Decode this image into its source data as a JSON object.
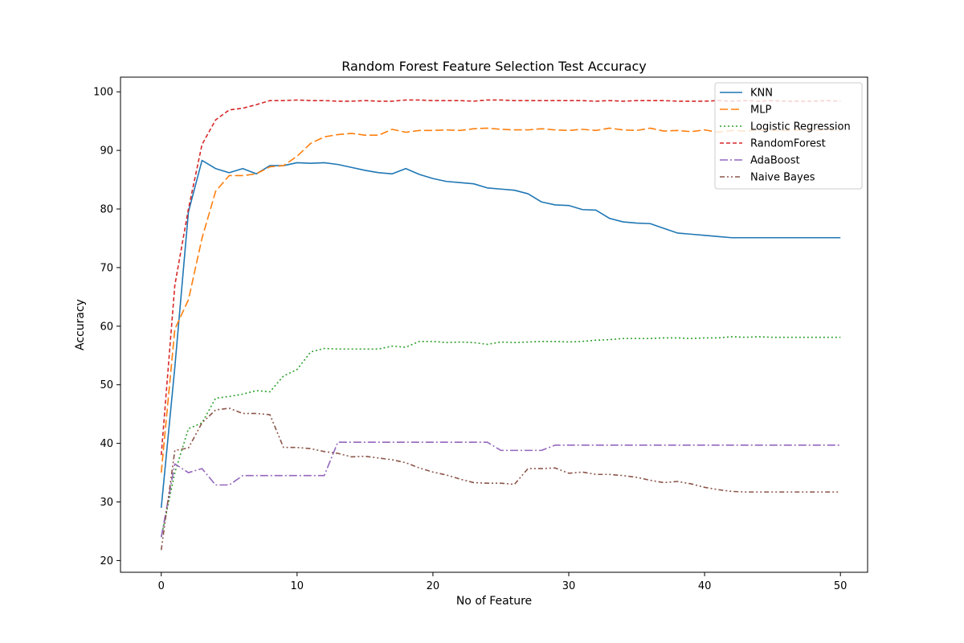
{
  "chart_data": {
    "type": "line",
    "title": "Random Forest Feature Selection Test Accuracy",
    "xlabel": "No of Feature",
    "ylabel": "Accuracy",
    "xlim": [
      -3,
      52
    ],
    "ylim": [
      18,
      102.5
    ],
    "x_ticks": [
      0,
      10,
      20,
      30,
      40,
      50
    ],
    "y_ticks": [
      20,
      30,
      40,
      50,
      60,
      70,
      80,
      90,
      100
    ],
    "grid": false,
    "legend_position": "top-right",
    "x": [
      0,
      1,
      2,
      3,
      4,
      5,
      6,
      7,
      8,
      9,
      10,
      11,
      12,
      13,
      14,
      15,
      16,
      17,
      18,
      19,
      20,
      21,
      22,
      23,
      24,
      25,
      26,
      27,
      28,
      29,
      30,
      31,
      32,
      33,
      34,
      35,
      36,
      37,
      38,
      39,
      40,
      41,
      42,
      43,
      44,
      45,
      46,
      47,
      48,
      49,
      50
    ],
    "series": [
      {
        "name": "KNN",
        "color": "#1f77b4",
        "dash": "solid",
        "values": [
          29.0,
          53.0,
          79.5,
          88.3,
          86.9,
          86.2,
          86.9,
          86.0,
          87.4,
          87.4,
          87.9,
          87.8,
          87.9,
          87.6,
          87.1,
          86.6,
          86.2,
          86.0,
          86.9,
          85.9,
          85.2,
          84.7,
          84.5,
          84.3,
          83.6,
          83.4,
          83.2,
          82.6,
          81.2,
          80.7,
          80.6,
          79.9,
          79.8,
          78.4,
          77.8,
          77.6,
          77.5,
          76.7,
          75.9,
          75.7,
          75.5,
          75.3,
          75.1,
          75.1,
          75.1,
          75.1,
          75.1,
          75.1,
          75.1,
          75.1,
          75.1
        ]
      },
      {
        "name": "MLP",
        "color": "#ff7f0e",
        "dash": "dashed",
        "values": [
          35.0,
          59.5,
          64.5,
          75.0,
          83.0,
          85.7,
          85.7,
          86.0,
          87.2,
          87.4,
          89.0,
          91.2,
          92.3,
          92.7,
          92.9,
          92.6,
          92.6,
          93.6,
          93.1,
          93.4,
          93.4,
          93.5,
          93.4,
          93.7,
          93.8,
          93.6,
          93.5,
          93.5,
          93.7,
          93.5,
          93.4,
          93.6,
          93.4,
          93.8,
          93.5,
          93.4,
          93.8,
          93.3,
          93.4,
          93.2,
          93.5,
          93.1,
          93.4,
          93.3,
          93.5,
          93.4,
          93.4,
          93.5,
          93.4,
          93.6,
          93.4
        ]
      },
      {
        "name": "Logistic Regression",
        "color": "#2ca02c",
        "dash": "dotted",
        "values": [
          24.0,
          35.0,
          42.5,
          43.5,
          47.7,
          48.0,
          48.4,
          49.0,
          48.8,
          51.5,
          52.6,
          55.6,
          56.2,
          56.1,
          56.1,
          56.1,
          56.1,
          56.6,
          56.4,
          57.4,
          57.4,
          57.2,
          57.3,
          57.2,
          56.9,
          57.3,
          57.2,
          57.3,
          57.4,
          57.4,
          57.3,
          57.4,
          57.6,
          57.7,
          57.9,
          57.9,
          57.9,
          58.0,
          58.0,
          57.9,
          58.0,
          58.0,
          58.2,
          58.1,
          58.2,
          58.1,
          58.1,
          58.1,
          58.1,
          58.1,
          58.1
        ]
      },
      {
        "name": "RandomForest",
        "color": "#d62728",
        "dash": "densedash",
        "values": [
          38.0,
          67.0,
          80.0,
          91.0,
          95.2,
          96.9,
          97.2,
          97.8,
          98.5,
          98.5,
          98.6,
          98.5,
          98.5,
          98.4,
          98.4,
          98.5,
          98.4,
          98.4,
          98.6,
          98.6,
          98.5,
          98.5,
          98.5,
          98.4,
          98.6,
          98.6,
          98.5,
          98.5,
          98.5,
          98.5,
          98.5,
          98.5,
          98.4,
          98.5,
          98.4,
          98.5,
          98.5,
          98.5,
          98.4,
          98.4,
          98.4,
          98.5,
          98.4,
          98.5,
          98.4,
          98.5,
          98.4,
          98.4,
          98.4,
          98.5,
          98.4
        ]
      },
      {
        "name": "AdaBoost",
        "color": "#9467bd",
        "dash": "dashdot",
        "values": [
          24.0,
          36.5,
          35.0,
          35.7,
          32.9,
          32.9,
          34.5,
          34.5,
          34.5,
          34.5,
          34.5,
          34.5,
          34.5,
          40.2,
          40.2,
          40.2,
          40.2,
          40.2,
          40.2,
          40.2,
          40.2,
          40.2,
          40.2,
          40.2,
          40.2,
          38.8,
          38.8,
          38.8,
          38.8,
          39.7,
          39.7,
          39.7,
          39.7,
          39.7,
          39.7,
          39.7,
          39.7,
          39.7,
          39.7,
          39.7,
          39.7,
          39.7,
          39.7,
          39.7,
          39.7,
          39.7,
          39.7,
          39.7,
          39.7,
          39.7,
          39.7
        ]
      },
      {
        "name": "Naive Bayes",
        "color": "#8c564b",
        "dash": "dashdotdot",
        "values": [
          21.8,
          38.8,
          39.2,
          43.5,
          45.7,
          46.0,
          45.1,
          45.1,
          44.9,
          39.3,
          39.3,
          39.1,
          38.6,
          38.3,
          37.7,
          37.8,
          37.5,
          37.2,
          36.7,
          35.8,
          35.1,
          34.6,
          33.9,
          33.3,
          33.2,
          33.2,
          33.0,
          35.7,
          35.7,
          35.8,
          34.9,
          35.1,
          34.7,
          34.7,
          34.5,
          34.2,
          33.7,
          33.3,
          33.5,
          33.1,
          32.5,
          32.1,
          31.8,
          31.7,
          31.7,
          31.7,
          31.7,
          31.7,
          31.7,
          31.7,
          31.7
        ]
      }
    ]
  }
}
